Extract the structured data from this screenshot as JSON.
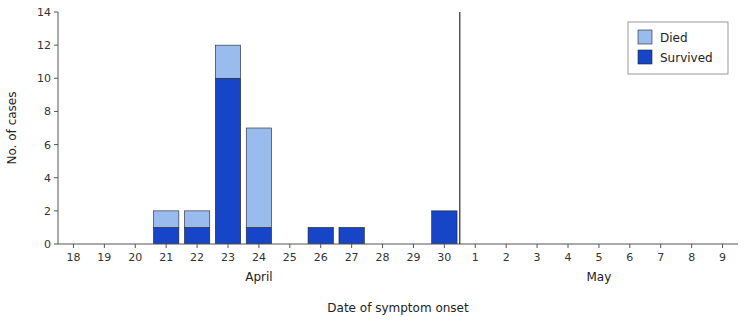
{
  "chart_data": {
    "type": "bar",
    "stacked": true,
    "categories": [
      "18",
      "19",
      "20",
      "21",
      "22",
      "23",
      "24",
      "25",
      "26",
      "27",
      "28",
      "29",
      "30",
      "1",
      "2",
      "3",
      "4",
      "5",
      "6",
      "7",
      "8",
      "9"
    ],
    "series": [
      {
        "name": "Survived",
        "color": "#1645c8",
        "values": [
          0,
          0,
          0,
          1,
          1,
          10,
          1,
          0,
          1,
          1,
          0,
          0,
          2,
          0,
          0,
          0,
          0,
          0,
          0,
          0,
          0,
          0
        ]
      },
      {
        "name": "Died",
        "color": "#99bbee",
        "values": [
          0,
          0,
          0,
          1,
          1,
          2,
          6,
          0,
          0,
          0,
          0,
          0,
          0,
          0,
          0,
          0,
          0,
          0,
          0,
          0,
          0,
          0
        ]
      }
    ],
    "ylabel": "No. of cases",
    "xlabel": "Date of symptom onset",
    "annotations": [
      "April",
      "May"
    ],
    "ylim": [
      0,
      14
    ],
    "yticks": [
      0,
      2,
      4,
      6,
      8,
      10,
      12,
      14
    ],
    "legend": "upper right"
  }
}
